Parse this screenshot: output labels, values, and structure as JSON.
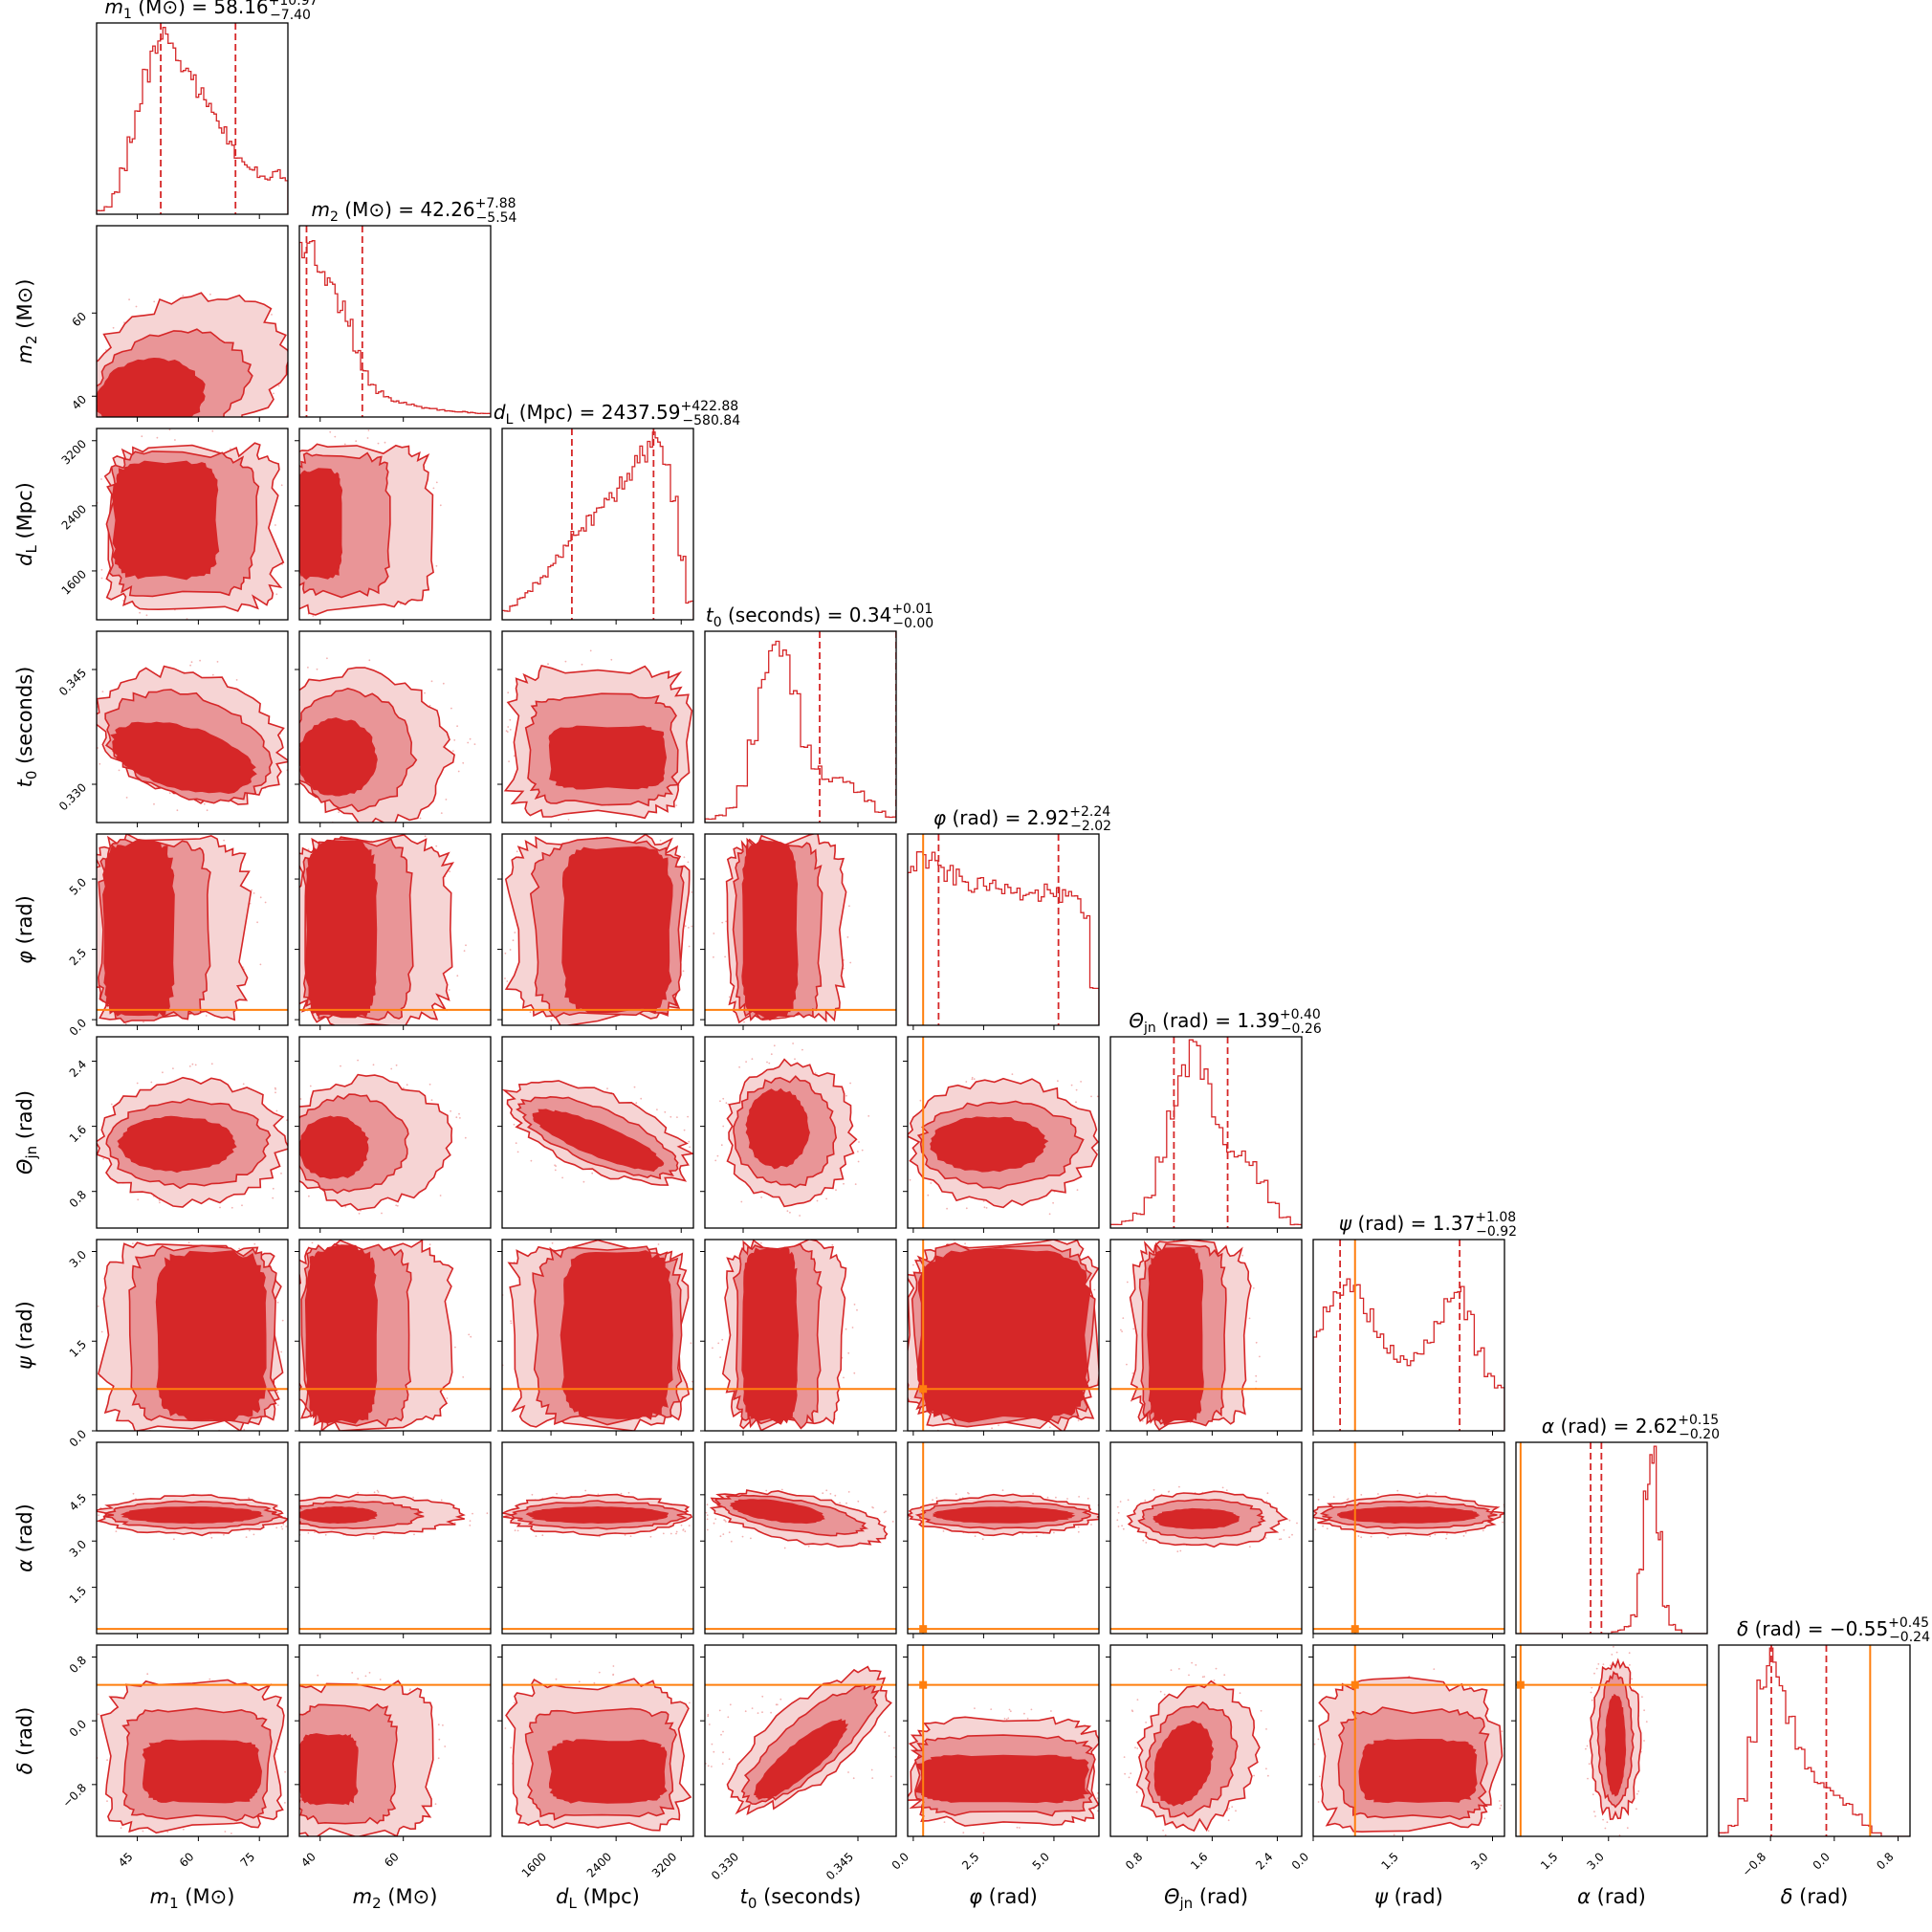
{
  "chart_data": {
    "type": "corner",
    "description_of_encoding": "",
    "colors": {
      "posterior": "#d62728",
      "fill_inner": "#d62728",
      "fill_mid": "#e99597",
      "fill_outer": "#f6d4d4",
      "truth": "#ff7f0e",
      "frame": "#000000"
    },
    "params": [
      {
        "id": "m1",
        "label": "m_1 (M_⊙)",
        "symbol": "m",
        "sub": "1",
        "unit": "(M⊙)",
        "range": [
          35,
          82
        ],
        "ticks": [
          45,
          60,
          75
        ],
        "tick_labels": [
          "45",
          "60",
          "75"
        ],
        "median": 58.16,
        "plus": "10.97",
        "minus": "7.40",
        "median_text": "58.16",
        "truth": null
      },
      {
        "id": "m2",
        "label": "m_2 (M_⊙)",
        "symbol": "m",
        "sub": "2",
        "unit": "(M⊙)",
        "range": [
          35,
          81
        ],
        "ticks": [
          40,
          60
        ],
        "tick_labels": [
          "40",
          "60"
        ],
        "median": 42.26,
        "plus": "7.88",
        "minus": "5.54",
        "median_text": "42.26",
        "truth": null
      },
      {
        "id": "dL",
        "label": "d_L (Mpc)",
        "symbol": "d",
        "sub": "L",
        "unit": "(Mpc)",
        "range": [
          1000,
          3350
        ],
        "ticks": [
          1600,
          2400,
          3200
        ],
        "tick_labels": [
          "1600",
          "2400",
          "3200"
        ],
        "median": 2437.59,
        "plus": "422.88",
        "minus": "580.84",
        "median_text": "2437.59",
        "truth": null
      },
      {
        "id": "t0",
        "label": "t_0 (seconds)",
        "symbol": "t",
        "sub": "0",
        "unit": "(seconds)",
        "range": [
          0.325,
          0.35
        ],
        "ticks": [
          0.33,
          0.345
        ],
        "tick_labels": [
          "0.330",
          "0.345"
        ],
        "median": 0.34,
        "plus": "0.01",
        "minus": "0.00",
        "median_text": "0.34",
        "truth": null
      },
      {
        "id": "phi",
        "label": "φ (rad)",
        "symbol": "φ",
        "sub": "",
        "unit": "(rad)",
        "range": [
          -0.2,
          6.6
        ],
        "ticks": [
          0,
          2.5,
          5.0
        ],
        "tick_labels": [
          "0.0",
          "2.5",
          "5.0"
        ],
        "median": 2.92,
        "plus": "2.24",
        "minus": "2.02",
        "median_text": "2.92",
        "truth": 0.35
      },
      {
        "id": "theta",
        "label": "Θ_jn (rad)",
        "symbol": "Θ",
        "sub": "jn",
        "unit": "(rad)",
        "range": [
          0.35,
          2.7
        ],
        "ticks": [
          0.8,
          1.6,
          2.4
        ],
        "tick_labels": [
          "0.8",
          "1.6",
          "2.4"
        ],
        "median": 1.39,
        "plus": "0.40",
        "minus": "0.26",
        "median_text": "1.39",
        "truth": null
      },
      {
        "id": "psi",
        "label": "ψ (rad)",
        "symbol": "ψ",
        "sub": "",
        "unit": "(rad)",
        "range": [
          0,
          3.2
        ],
        "ticks": [
          0.0,
          1.5,
          3.0
        ],
        "tick_labels": [
          "0.0",
          "1.5",
          "3.0"
        ],
        "median": 1.37,
        "plus": "1.08",
        "minus": "0.92",
        "median_text": "1.37",
        "truth": 0.7
      },
      {
        "id": "alpha",
        "label": "α (rad)",
        "symbol": "α",
        "sub": "",
        "unit": "(rad)",
        "range": [
          0,
          6.2
        ],
        "ticks": [
          1.5,
          3.0
        ],
        "tick_labels": [
          "1.5",
          "3.0"
        ],
        "y_ticks": [
          1.5,
          3.0,
          4.5
        ],
        "y_tick_labels": [
          "1.5",
          "3.0",
          "4.5"
        ],
        "median": 2.62,
        "plus": "0.15",
        "minus": "0.20",
        "median_text": "2.62",
        "truth": 0.15
      },
      {
        "id": "delta",
        "label": "δ (rad)",
        "symbol": "δ",
        "sub": "",
        "unit": "(rad)",
        "range": [
          -1.45,
          0.95
        ],
        "ticks": [
          -0.8,
          0.0,
          0.8
        ],
        "tick_labels": [
          "−0.8",
          "0.0",
          "0.8"
        ],
        "median": -0.55,
        "plus": "0.45",
        "minus": "0.24",
        "median_text": "−0.55",
        "truth": 0.45
      }
    ],
    "histograms": {
      "m1": [
        0.02,
        0.04,
        0.12,
        0.25,
        0.42,
        0.6,
        0.78,
        0.92,
        1.0,
        0.97,
        0.9,
        0.82,
        0.76,
        0.68,
        0.62,
        0.55,
        0.48,
        0.4,
        0.32,
        0.28,
        0.26,
        0.22,
        0.2,
        0.24,
        0.2
      ],
      "m2": [
        0.95,
        1.0,
        0.86,
        0.78,
        0.72,
        0.62,
        0.52,
        0.38,
        0.26,
        0.18,
        0.14,
        0.11,
        0.09,
        0.08,
        0.07,
        0.06,
        0.05,
        0.045,
        0.04,
        0.035,
        0.03,
        0.03,
        0.025,
        0.02,
        0.02
      ],
      "dL": [
        0.05,
        0.08,
        0.12,
        0.16,
        0.2,
        0.25,
        0.3,
        0.36,
        0.42,
        0.48,
        0.52,
        0.56,
        0.6,
        0.65,
        0.7,
        0.76,
        0.82,
        0.88,
        0.94,
        1.0,
        0.97,
        0.92,
        0.7,
        0.35,
        0.1
      ],
      "t0": [
        0.02,
        0.04,
        0.08,
        0.2,
        0.45,
        0.8,
        1.0,
        0.92,
        0.7,
        0.45,
        0.3,
        0.24,
        0.26,
        0.22,
        0.18,
        0.12,
        0.06,
        0.03
      ],
      "phi": [
        0.9,
        0.95,
        0.92,
        0.88,
        0.85,
        0.83,
        0.8,
        0.78,
        0.8,
        0.77,
        0.76,
        0.78,
        0.75,
        0.77,
        0.74,
        0.76,
        0.73,
        0.72,
        0.7,
        0.6,
        0.2
      ],
      "theta": [
        0.02,
        0.04,
        0.08,
        0.18,
        0.38,
        0.65,
        0.9,
        1.0,
        0.85,
        0.6,
        0.45,
        0.42,
        0.36,
        0.26,
        0.14,
        0.06,
        0.02
      ],
      "psi": [
        0.55,
        0.7,
        0.78,
        0.82,
        0.78,
        0.65,
        0.55,
        0.46,
        0.4,
        0.38,
        0.42,
        0.5,
        0.62,
        0.75,
        0.8,
        0.66,
        0.45,
        0.32,
        0.25
      ],
      "alpha": [
        0.0,
        0.0,
        0.0,
        0.0,
        0.0,
        0.0,
        0.0,
        0.0,
        0.0,
        0.0,
        0.0,
        0.0,
        0.0,
        0.0,
        0.0,
        0.01,
        0.02,
        0.04,
        0.1,
        0.35,
        0.8,
        1.0,
        0.55,
        0.15,
        0.05,
        0.02,
        0.0,
        0.0,
        0.0,
        0.0
      ],
      "delta": [
        0.02,
        0.06,
        0.2,
        0.55,
        0.88,
        1.0,
        0.85,
        0.66,
        0.5,
        0.38,
        0.3,
        0.26,
        0.22,
        0.18,
        0.12,
        0.06,
        0.02,
        0.0,
        0.0,
        0.0
      ]
    },
    "joint_shapes": {
      "1,0": "rising-wedge",
      "2,0": "box-central",
      "2,1": "box-left",
      "3,0": "tilted-down",
      "3,1": "tilted-down-left",
      "3,2": "box-lower",
      "4,0": "vertical-band-left",
      "4,1": "vertical-band-left",
      "4,2": "box-tall",
      "4,3": "vertical-band",
      "5,0": "horizontal-mid",
      "5,1": "fan-left",
      "5,2": "diag-down",
      "5,3": "blob-c",
      "5,4": "horizontal-mid",
      "6,0": "box-tall",
      "6,1": "vertical-band-left",
      "6,2": "box-tall",
      "6,3": "vertical-band",
      "6,4": "full-box",
      "6,5": "vertical-band",
      "7,0": "thin-horizontal",
      "7,1": "thin-horizontal-left",
      "7,2": "thin-horizontal",
      "7,3": "thin-tilted",
      "7,4": "thin-horizontal",
      "7,5": "lens",
      "7,6": "thin-horizontal",
      "8,0": "box-lower",
      "8,1": "box-lower-left",
      "8,2": "box-lower",
      "8,3": "diag-up",
      "8,4": "horizontal-low",
      "8,5": "blob-low",
      "8,6": "box-lower",
      "8,7": "vertical-narrow"
    },
    "title": "",
    "xlabel": "",
    "ylabel": ""
  }
}
